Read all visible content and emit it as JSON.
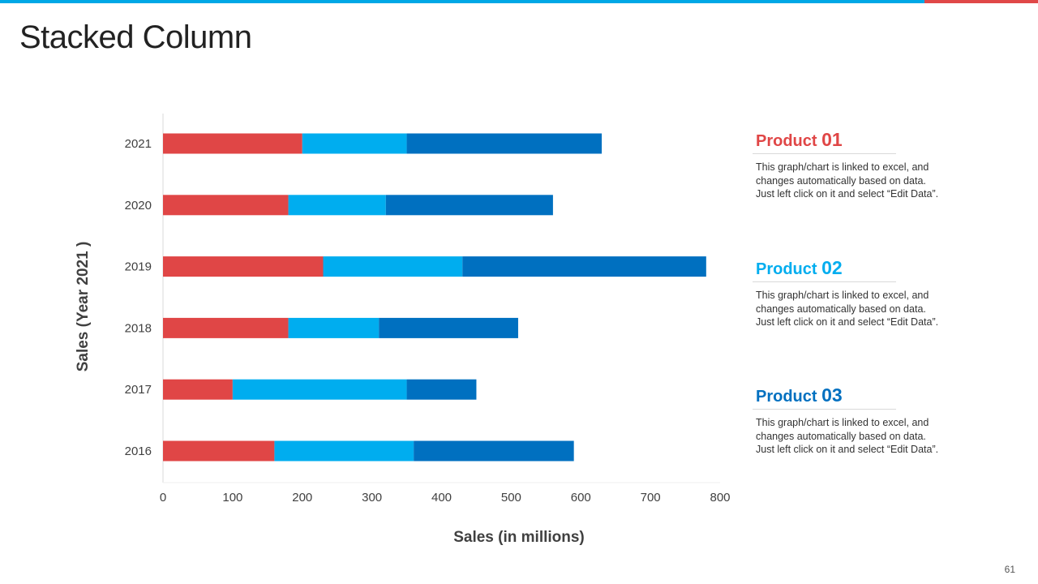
{
  "page": {
    "title": "Stacked Column",
    "page_number": "61"
  },
  "colors": {
    "topbar": "#00a8e6",
    "topbar_accent": "#e04848",
    "product_01": "#e04646",
    "product_02": "#00adef",
    "product_03": "#0070c0"
  },
  "chart_data": {
    "type": "bar",
    "orientation": "horizontal",
    "stacked": true,
    "title": "",
    "xlabel": "Sales (in millions)",
    "ylabel": "Sales (Year 2021 )",
    "xlim": [
      0,
      800
    ],
    "xticks": [
      0,
      100,
      200,
      300,
      400,
      500,
      600,
      700,
      800
    ],
    "categories": [
      "2016",
      "2017",
      "2018",
      "2019",
      "2020",
      "2021"
    ],
    "series": [
      {
        "name": "Product 01",
        "values": [
          160,
          100,
          180,
          230,
          180,
          200
        ]
      },
      {
        "name": "Product 02",
        "values": [
          200,
          250,
          130,
          200,
          140,
          150
        ]
      },
      {
        "name": "Product 03",
        "values": [
          230,
          100,
          200,
          350,
          240,
          280
        ]
      }
    ]
  },
  "legend": [
    {
      "label": "Product",
      "number": "01",
      "description": "This graph/chart is linked to excel,  and\nchanges automatically based on data.\nJust left click on it and select “Edit Data”."
    },
    {
      "label": "Product",
      "number": "02",
      "description": "This graph/chart is linked to excel,  and\nchanges automatically based on data.\nJust left click on it and select “Edit Data”."
    },
    {
      "label": "Product",
      "number": "03",
      "description": "This graph/chart is linked to excel,  and\nchanges automatically based on data.\nJust left click on it and select “Edit Data”."
    }
  ]
}
